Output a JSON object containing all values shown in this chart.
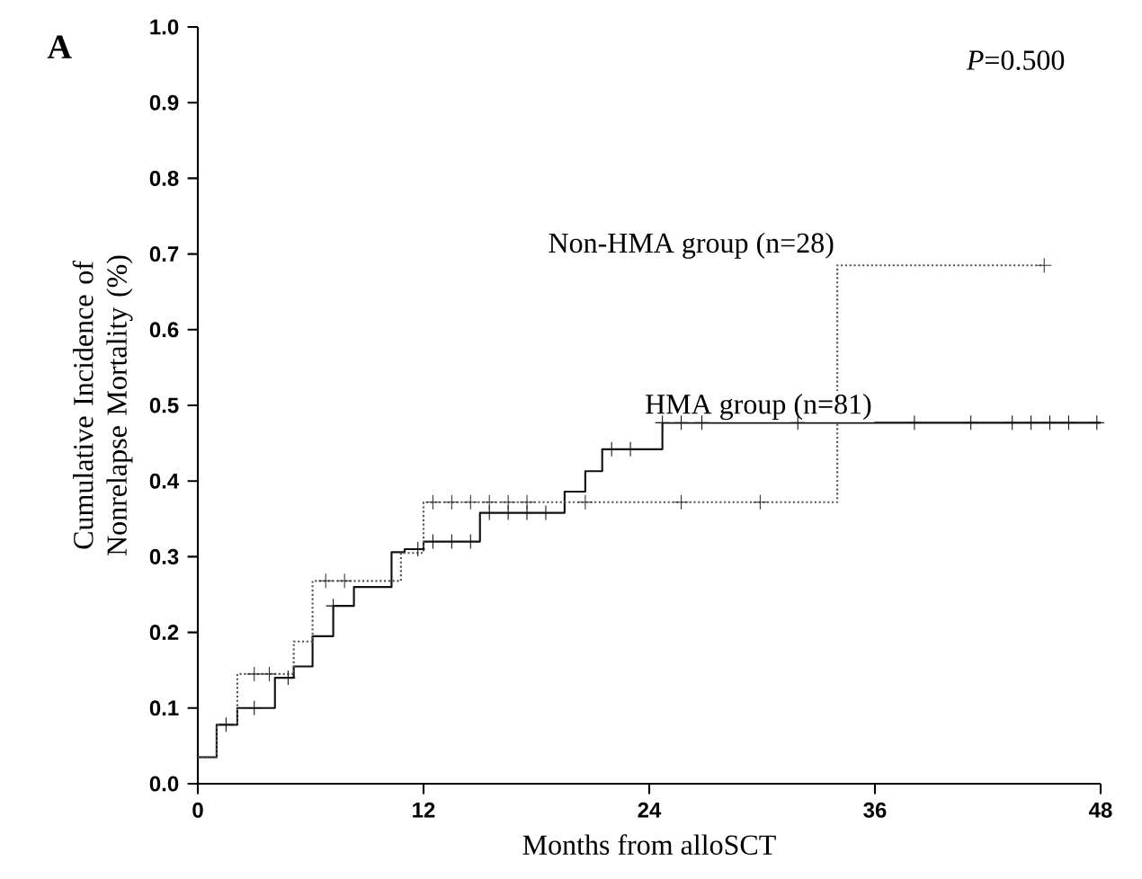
{
  "chart_data": {
    "type": "step",
    "xlabel": "Months from alloSCT",
    "ylabel": "Cumulative Incidence of Nonrelapse Mortality (%)",
    "xlim": [
      0,
      48
    ],
    "ylim": [
      0,
      1.0
    ],
    "xticks": [
      0,
      12,
      24,
      36,
      48
    ],
    "yticks": [
      {
        "value": 0,
        "label": "0.0"
      },
      {
        "value": 0.1,
        "label": "0.1"
      },
      {
        "value": 0.2,
        "label": "0.2"
      },
      {
        "value": 0.3,
        "label": "0.3"
      },
      {
        "value": 0.4,
        "label": "0.4"
      },
      {
        "value": 0.5,
        "label": "0.5"
      },
      {
        "value": 0.6,
        "label": "0.6"
      },
      {
        "value": 0.7,
        "label": "0.7"
      },
      {
        "value": 0.8,
        "label": "0.8"
      },
      {
        "value": 0.9,
        "label": "0.9"
      },
      {
        "value": 1.0,
        "label": "1.0"
      }
    ],
    "grid": false,
    "series": [
      {
        "type": "step",
        "color": "#111111",
        "line_style": "solid",
        "marker": "none",
        "x": [
          0,
          1,
          2.1,
          4.1,
          5.1,
          6.1,
          7.2,
          8.3,
          10.3,
          11,
          12,
          15,
          19.5,
          20.6,
          21.5,
          24.7,
          48
        ],
        "values": [
          0.035,
          0.078,
          0.1,
          0.14,
          0.155,
          0.195,
          0.235,
          0.26,
          0.306,
          0.31,
          0.32,
          0.358,
          0.386,
          0.413,
          0.442,
          0.477,
          0.477
        ]
      },
      {
        "type": "step",
        "color": "#555555",
        "line_style": "dotted",
        "marker": "none",
        "x": [
          0,
          1,
          2.1,
          5.1,
          6.1,
          10.8,
          12,
          34,
          45
        ],
        "values": [
          0.035,
          0.078,
          0.145,
          0.188,
          0.268,
          0.305,
          0.372,
          0.685,
          0.685
        ]
      },
      {
        "type": "scatter",
        "color": "#111111",
        "marker": "cross",
        "x": [
          1.5,
          3,
          4.8,
          7.2,
          11.7,
          12.5,
          13.5,
          14.5,
          15.5,
          16.5,
          17.5,
          18.5,
          22,
          23,
          24.7,
          25.7,
          26.8,
          31.9,
          38.1,
          41.1,
          43.3,
          44.3,
          45.3,
          46.3,
          47.8
        ],
        "values": [
          0.078,
          0.1,
          0.14,
          0.235,
          0.31,
          0.32,
          0.32,
          0.32,
          0.358,
          0.358,
          0.358,
          0.358,
          0.442,
          0.442,
          0.477,
          0.477,
          0.477,
          0.477,
          0.477,
          0.477,
          0.477,
          0.477,
          0.477,
          0.477,
          0.477
        ]
      },
      {
        "type": "scatter",
        "color": "#333333",
        "marker": "cross",
        "x": [
          3,
          3.8,
          6.8,
          7.8,
          12.5,
          13.5,
          14.5,
          15.5,
          16.5,
          17.5,
          20.6,
          25.7,
          29.9,
          45
        ],
        "values": [
          0.145,
          0.145,
          0.268,
          0.268,
          0.372,
          0.372,
          0.372,
          0.372,
          0.372,
          0.372,
          0.372,
          0.372,
          0.372,
          0.685
        ]
      }
    ],
    "annotations": [
      "A",
      "*P*=0.500",
      {
        "text": "Non-HMA group (n=28)",
        "x": 34,
        "y": 0.69
      },
      {
        "text": "HMA group (n=81)",
        "x": 36,
        "y": 0.477
      }
    ]
  }
}
